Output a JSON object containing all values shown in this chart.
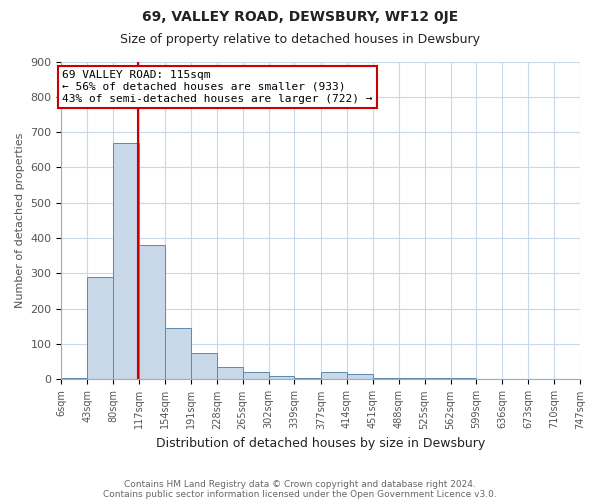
{
  "title": "69, VALLEY ROAD, DEWSBURY, WF12 0JE",
  "subtitle": "Size of property relative to detached houses in Dewsbury",
  "xlabel": "Distribution of detached houses by size in Dewsbury",
  "ylabel": "Number of detached properties",
  "footnote1": "Contains HM Land Registry data © Crown copyright and database right 2024.",
  "footnote2": "Contains public sector information licensed under the Open Government Licence v3.0.",
  "bin_edges": [
    6,
    43,
    80,
    117,
    154,
    191,
    228,
    265,
    302,
    339,
    377,
    414,
    451,
    488,
    525,
    562,
    599,
    636,
    673,
    710,
    747
  ],
  "bar_heights": [
    5,
    290,
    670,
    380,
    145,
    75,
    35,
    20,
    10,
    5,
    20,
    15,
    5,
    5,
    5,
    3,
    2,
    2,
    2,
    2
  ],
  "bar_color": "#c8d8e8",
  "bar_edge_color": "#5a8ab0",
  "vline_x": 115,
  "vline_color": "#cc0000",
  "annotation_line1": "69 VALLEY ROAD: 115sqm",
  "annotation_line2": "← 56% of detached houses are smaller (933)",
  "annotation_line3": "43% of semi-detached houses are larger (722) →",
  "annotation_box_color": "#ffffff",
  "annotation_box_edge": "#cc0000",
  "ylim": [
    0,
    900
  ],
  "yticks": [
    0,
    100,
    200,
    300,
    400,
    500,
    600,
    700,
    800,
    900
  ],
  "background_color": "#ffffff",
  "grid_color": "#c8d8e8",
  "tick_label_color": "#555555",
  "title_fontsize": 10,
  "subtitle_fontsize": 9,
  "xlabel_fontsize": 9,
  "ylabel_fontsize": 8,
  "tick_fontsize": 7,
  "footnote_fontsize": 6.5
}
